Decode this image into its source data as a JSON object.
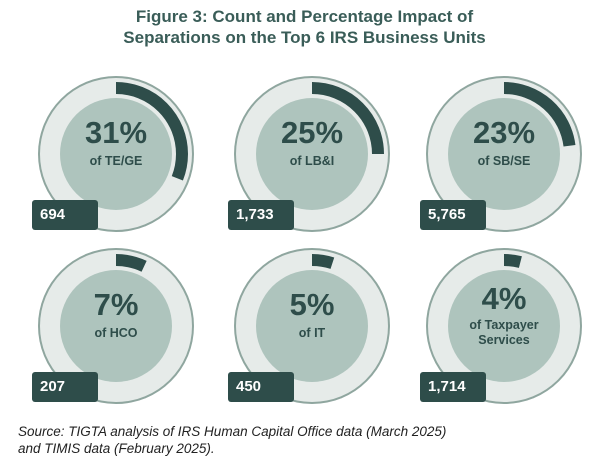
{
  "chart_data": {
    "type": "pie",
    "title": "Figure 3: Count and Percentage Impact of Separations on the Top 6 IRS Business Units",
    "title_lines": [
      "Figure 3: Count and Percentage Impact of",
      "Separations on the Top 6 IRS Business Units"
    ],
    "units": [
      {
        "pct_label": "31%",
        "value": 31,
        "label": "of TE/GE",
        "count": "694"
      },
      {
        "pct_label": "25%",
        "value": 25,
        "label": "of LB&I",
        "count": "1,733"
      },
      {
        "pct_label": "23%",
        "value": 23,
        "label": "of SB/SE",
        "count": "5,765"
      },
      {
        "pct_label": "7%",
        "value": 7,
        "label": "of HCO",
        "count": "207"
      },
      {
        "pct_label": "5%",
        "value": 5,
        "label": "of IT",
        "count": "450"
      },
      {
        "pct_label": "4%",
        "value": 4,
        "label": "of Taxpayer Services",
        "count": "1,714"
      }
    ],
    "colors": {
      "highlight": "#2e4d4a",
      "ring": "#e6ebe9",
      "disc": "#aec4bd",
      "outer": "#8fa69f"
    }
  },
  "footer": {
    "source_line1": "Source: TIGTA analysis of IRS Human Capital Office data (March 2025)",
    "source_line2": "and TIMIS data (February 2025)."
  }
}
